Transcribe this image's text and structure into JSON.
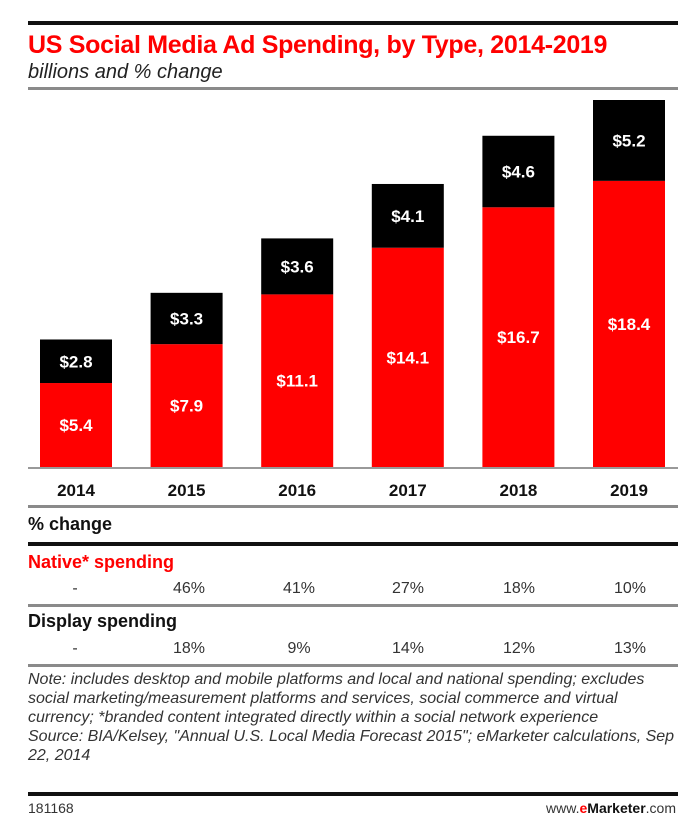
{
  "header": {
    "title": "US Social Media Ad Spending, by Type, 2014-2019",
    "subtitle": "billions and % change"
  },
  "colors": {
    "native": "#ff0000",
    "display": "#000000",
    "title": "#ff0000"
  },
  "chart_data": {
    "type": "bar",
    "stacked": true,
    "title": "US Social Media Ad Spending, by Type, 2014-2019",
    "subtitle": "billions and % change",
    "xlabel": "",
    "ylabel": "",
    "categories": [
      "2014",
      "2015",
      "2016",
      "2017",
      "2018",
      "2019"
    ],
    "series": [
      {
        "name": "Native* spending",
        "color": "#ff0000",
        "values": [
          5.4,
          7.9,
          11.1,
          14.1,
          16.7,
          18.4
        ],
        "labels": [
          "$5.4",
          "$7.9",
          "$11.1",
          "$14.1",
          "$16.7",
          "$18.4"
        ]
      },
      {
        "name": "Display spending",
        "color": "#000000",
        "values": [
          2.8,
          3.3,
          3.6,
          4.1,
          4.6,
          5.2
        ],
        "labels": [
          "$2.8",
          "$3.3",
          "$3.6",
          "$4.1",
          "$4.6",
          "$5.2"
        ]
      }
    ],
    "ylim": [
      0,
      24
    ],
    "grid": false,
    "legend": "none"
  },
  "table": {
    "heading": "% change",
    "sections": [
      {
        "label": "Native* spending",
        "values": [
          "-",
          "46%",
          "41%",
          "27%",
          "18%",
          "10%"
        ]
      },
      {
        "label": "Display spending",
        "values": [
          "-",
          "18%",
          "9%",
          "14%",
          "12%",
          "13%"
        ]
      }
    ]
  },
  "note": "Note: includes desktop and mobile platforms and local and national spending; excludes social marketing/measurement platforms and services, social commerce and virtual currency; *branded content integrated directly within a social network experience",
  "source": "Source: BIA/Kelsey, \"Annual U.S. Local Media Forecast 2015\"; eMarketer calculations, Sep 22, 2014",
  "footer": {
    "chart_id": "181168",
    "brand_prefix": "www.",
    "brand_e": "e",
    "brand_name": "Marketer",
    "brand_suffix": ".com"
  }
}
